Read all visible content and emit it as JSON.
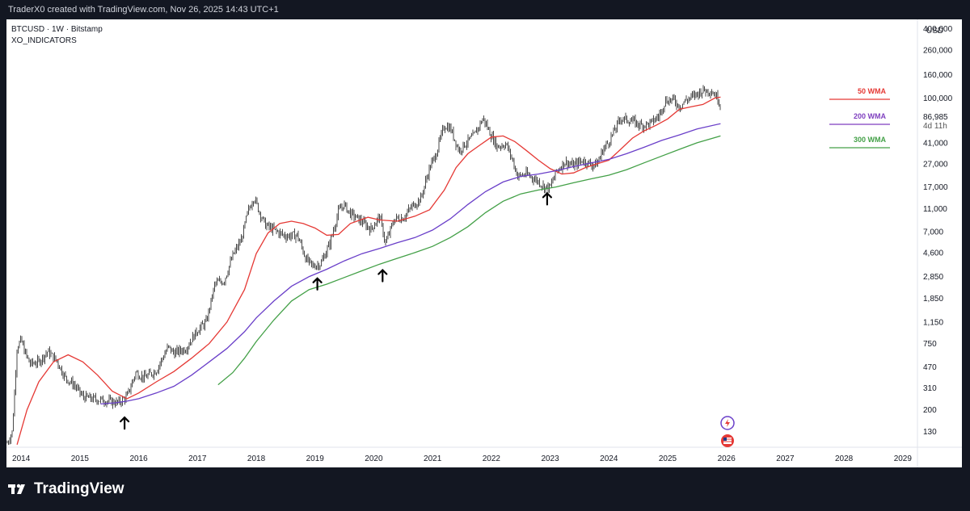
{
  "header": {
    "attribution": "TraderX0 created with TradingView.com, Nov 26, 2025 14:43 UTC+1"
  },
  "legend": {
    "symbol_line": "BTCUSD · 1W · Bitstamp",
    "indicator_line": "XO_INDICATORS"
  },
  "price_axis": {
    "currency": "USD",
    "last_price": "86,985",
    "countdown": "4d 11h"
  },
  "ma_legend": [
    {
      "label": "50 WMA",
      "color": "#e53935"
    },
    {
      "label": "200 WMA",
      "color": "#7e3fbf"
    },
    {
      "label": "300 WMA",
      "color": "#43a047"
    }
  ],
  "footer": {
    "brand": "TradingView"
  },
  "colors": {
    "background": "#131722",
    "plot_bg": "#ffffff",
    "candles": "#4a4a4a",
    "wma50": "#e53935",
    "wma200": "#6a3fc9",
    "wma300": "#43a047",
    "arrows": "#000000"
  },
  "icons": [
    "tradingview-logo-icon",
    "lightning-icon",
    "us-flag-icon",
    "up-arrow-icon"
  ],
  "chart_data": {
    "type": "line",
    "title": "BTCUSD · 1W · Bitstamp",
    "xlabel": "",
    "ylabel": "USD",
    "y_scale": "log",
    "ylim": [
      95,
      480000
    ],
    "xlim": [
      2013.75,
      2029.25
    ],
    "x_ticks": [
      "2014",
      "2015",
      "2016",
      "2017",
      "2018",
      "2019",
      "2020",
      "2021",
      "2022",
      "2023",
      "2024",
      "2025",
      "2026",
      "2027",
      "2028",
      "2029"
    ],
    "y_ticks": [
      "400,000",
      "260,000",
      "160,000",
      "100,000",
      "41,000",
      "27,000",
      "17,000",
      "11,000",
      "7,000",
      "4,600",
      "2,850",
      "1,850",
      "1,150",
      "750",
      "470",
      "310",
      "200",
      "130"
    ],
    "series": [
      {
        "name": "BTCUSD",
        "x": [
          2013.75,
          2013.85,
          2013.93,
          2014.0,
          2014.07,
          2014.15,
          2014.3,
          2014.45,
          2014.6,
          2014.75,
          2014.9,
          2015.05,
          2015.2,
          2015.45,
          2015.65,
          2015.8,
          2015.95,
          2016.1,
          2016.3,
          2016.5,
          2016.6,
          2016.8,
          2017.0,
          2017.15,
          2017.3,
          2017.45,
          2017.6,
          2017.75,
          2017.85,
          2017.96,
          2018.05,
          2018.15,
          2018.3,
          2018.5,
          2018.7,
          2018.85,
          2018.96,
          2019.1,
          2019.25,
          2019.4,
          2019.49,
          2019.6,
          2019.8,
          2019.95,
          2020.1,
          2020.2,
          2020.35,
          2020.5,
          2020.65,
          2020.8,
          2020.95,
          2021.05,
          2021.2,
          2021.3,
          2021.45,
          2021.55,
          2021.7,
          2021.86,
          2022.0,
          2022.1,
          2022.25,
          2022.35,
          2022.45,
          2022.6,
          2022.8,
          2022.9,
          2023.0,
          2023.1,
          2023.25,
          2023.4,
          2023.55,
          2023.7,
          2023.8,
          2023.9,
          2024.0,
          2024.2,
          2024.4,
          2024.55,
          2024.7,
          2024.85,
          2024.96,
          2025.1,
          2025.2,
          2025.3,
          2025.45,
          2025.6,
          2025.75,
          2025.85,
          2025.9
        ],
        "y": [
          100,
          130,
          700,
          800,
          620,
          500,
          520,
          640,
          540,
          380,
          330,
          260,
          250,
          240,
          230,
          260,
          420,
          380,
          440,
          700,
          620,
          680,
          980,
          1150,
          2500,
          2600,
          4300,
          6000,
          10000,
          14000,
          10500,
          8000,
          7200,
          6400,
          6500,
          4000,
          3500,
          3700,
          5500,
          10500,
          12000,
          10000,
          8500,
          7300,
          9500,
          5500,
          9000,
          9200,
          11500,
          13500,
          25000,
          32000,
          58000,
          55000,
          35000,
          40000,
          47000,
          67000,
          47000,
          38000,
          40000,
          30000,
          21000,
          22000,
          19000,
          17000,
          16800,
          23000,
          28000,
          26000,
          29000,
          26500,
          27000,
          36000,
          42000,
          67000,
          63000,
          58000,
          60000,
          70000,
          95000,
          97000,
          84000,
          95000,
          105000,
          117000,
          115000,
          100000,
          86985
        ]
      },
      {
        "name": "50 WMA",
        "x": [
          2013.93,
          2014.1,
          2014.3,
          2014.55,
          2014.8,
          2015.05,
          2015.3,
          2015.55,
          2015.8,
          2016.0,
          2016.3,
          2016.6,
          2016.9,
          2017.2,
          2017.5,
          2017.8,
          2018.0,
          2018.2,
          2018.4,
          2018.6,
          2018.8,
          2019.0,
          2019.2,
          2019.4,
          2019.6,
          2019.9,
          2020.1,
          2020.4,
          2020.7,
          2020.95,
          2021.2,
          2021.4,
          2021.6,
          2021.8,
          2022.0,
          2022.2,
          2022.4,
          2022.6,
          2022.8,
          2023.0,
          2023.2,
          2023.4,
          2023.6,
          2023.8,
          2024.0,
          2024.2,
          2024.4,
          2024.6,
          2024.8,
          2025.0,
          2025.2,
          2025.4,
          2025.6,
          2025.8,
          2025.9
        ],
        "y": [
          100,
          200,
          350,
          520,
          600,
          520,
          400,
          290,
          250,
          280,
          350,
          430,
          560,
          750,
          1150,
          2200,
          4500,
          6800,
          8200,
          8600,
          8200,
          7500,
          6500,
          6600,
          8200,
          9300,
          8800,
          8600,
          9500,
          10800,
          16000,
          25000,
          33000,
          39000,
          46000,
          47000,
          42000,
          35000,
          29000,
          24500,
          22000,
          22500,
          25000,
          27000,
          29000,
          36000,
          45000,
          52000,
          58000,
          66000,
          80000,
          84000,
          88000,
          100000,
          102000
        ]
      },
      {
        "name": "200 WMA",
        "x": [
          2015.35,
          2015.6,
          2015.8,
          2016.0,
          2016.3,
          2016.6,
          2016.9,
          2017.2,
          2017.5,
          2017.8,
          2018.0,
          2018.3,
          2018.6,
          2018.9,
          2019.2,
          2019.5,
          2019.8,
          2020.1,
          2020.4,
          2020.7,
          2021.0,
          2021.3,
          2021.6,
          2021.9,
          2022.2,
          2022.5,
          2022.8,
          2023.1,
          2023.4,
          2023.7,
          2024.0,
          2024.3,
          2024.6,
          2024.9,
          2025.2,
          2025.5,
          2025.9
        ],
        "y": [
          225,
          230,
          238,
          250,
          280,
          320,
          400,
          520,
          680,
          950,
          1250,
          1750,
          2350,
          2850,
          3300,
          3900,
          4500,
          5000,
          5600,
          6200,
          7200,
          9000,
          12000,
          15500,
          18800,
          21000,
          22000,
          23500,
          25500,
          27500,
          29500,
          33000,
          37500,
          43000,
          48000,
          54000,
          60000
        ]
      },
      {
        "name": "300 WMA",
        "x": [
          2017.35,
          2017.6,
          2017.8,
          2018.0,
          2018.3,
          2018.6,
          2018.9,
          2019.2,
          2019.5,
          2019.8,
          2020.1,
          2020.4,
          2020.7,
          2021.0,
          2021.3,
          2021.6,
          2021.9,
          2022.2,
          2022.5,
          2022.8,
          2023.1,
          2023.4,
          2023.7,
          2024.0,
          2024.3,
          2024.6,
          2024.9,
          2025.2,
          2025.5,
          2025.9
        ],
        "y": [
          330,
          420,
          560,
          780,
          1200,
          1750,
          2200,
          2450,
          2800,
          3200,
          3650,
          4100,
          4600,
          5200,
          6200,
          7700,
          10200,
          12800,
          14800,
          16000,
          17000,
          18500,
          20000,
          21500,
          24000,
          27500,
          31500,
          36000,
          41000,
          47000
        ]
      }
    ],
    "annotations": [
      {
        "type": "up-arrow",
        "x": 2015.76,
        "y": 172
      },
      {
        "type": "up-arrow",
        "x": 2019.04,
        "y": 2750
      },
      {
        "type": "up-arrow",
        "x": 2020.15,
        "y": 3250
      },
      {
        "type": "up-arrow",
        "x": 2022.95,
        "y": 15000
      }
    ]
  }
}
